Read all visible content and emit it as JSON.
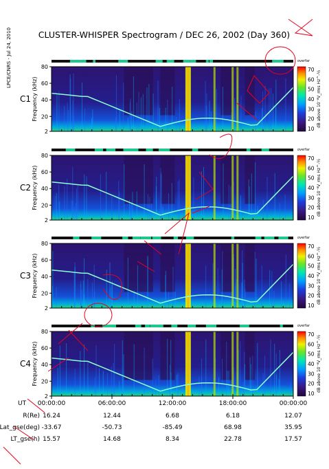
{
  "title": "CLUSTER-WHISPER Spectrogram / DEC 26, 2002 (Day 360)",
  "credit": "LPCE/CNRS - Jul 24, 2010",
  "colors": {
    "overlay_red": "#e8001c",
    "accent_green": "#1cc88c",
    "c3_label": "#18b46e"
  },
  "chart_data": {
    "type": "heatmap",
    "panels": [
      {
        "spacecraft": "C1",
        "label_color": "#000000"
      },
      {
        "spacecraft": "C2",
        "label_color": "#000000"
      },
      {
        "spacecraft": "C3",
        "label_color": "#18b46e"
      },
      {
        "spacecraft": "C4",
        "label_color": "#000000"
      }
    ],
    "ylabel": "Frequency (kHz)",
    "y_ticks": [
      "80",
      "60",
      "40",
      "20",
      "2"
    ],
    "ylim": [
      2,
      80
    ],
    "x_ticks": [
      "00:00:00",
      "06:00:00",
      "12:00:00",
      "18:00:00",
      "00:00:00"
    ],
    "colorbar": {
      "tag": "overfar",
      "label": "dB above 10⁻⁸V_rms Hz^-½",
      "ticks": [
        "70",
        "60",
        "50",
        "40",
        "30",
        "20",
        "10"
      ],
      "range": [
        10,
        70
      ]
    },
    "ephemeris": {
      "ut_label": "UT",
      "rows": [
        {
          "label": "R(Re)",
          "values": [
            "16.24",
            "12.44",
            "6.68",
            "6.18",
            "12.07"
          ]
        },
        {
          "label": "Lat_gse(deg)",
          "values": [
            "-33.67",
            "-50.73",
            "-85.49",
            "68.98",
            "35.95"
          ]
        },
        {
          "label": "LT_gse(h)",
          "values": [
            "15.57",
            "14.68",
            "8.34",
            "22.78",
            "17.57"
          ]
        }
      ]
    }
  }
}
